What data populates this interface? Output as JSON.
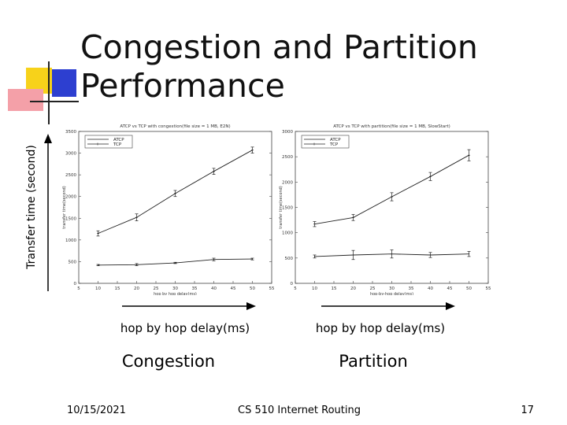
{
  "slide": {
    "title": "Congestion and Partition Performance",
    "y_axis_caption": "Transfer time (second)",
    "footer": {
      "date": "10/15/2021",
      "course": "CS 510 Internet Routing",
      "page": "17"
    }
  },
  "colors": {
    "deco_yellow": "#f7d21a",
    "deco_blue": "#2d3fd0",
    "deco_pink": "#f4a0a8"
  },
  "chart_data": [
    {
      "id": "congestion",
      "type": "line",
      "title": "ATCP vs TCP with congestion(file size = 1 MB, E2N)",
      "xlabel": "hop by hop delay(ms)",
      "ylabel": "transfer time(second)",
      "caption_x": "hop by hop delay(ms)",
      "caption_name": "Congestion",
      "xlim": [
        5,
        55
      ],
      "ylim": [
        0,
        3500
      ],
      "xticks": [
        5,
        10,
        15,
        20,
        25,
        30,
        35,
        40,
        45,
        50,
        55
      ],
      "yticks": [
        0,
        500,
        1000,
        1500,
        2000,
        2500,
        3000,
        3500
      ],
      "x": [
        10,
        20,
        30,
        40,
        50
      ],
      "series": [
        {
          "name": "ATCP",
          "values": [
            420,
            430,
            470,
            550,
            560
          ],
          "err": [
            15,
            25,
            15,
            30,
            20
          ]
        },
        {
          "name": "TCP",
          "values": [
            1150,
            1520,
            2070,
            2580,
            3070
          ],
          "err": [
            60,
            80,
            70,
            70,
            70
          ]
        }
      ],
      "legend": "top-left"
    },
    {
      "id": "partition",
      "type": "line",
      "title": "ATCP vs TCP with partition(file size = 1 MB, SlowStart)",
      "xlabel": "hop-by-hop delay(ms)",
      "ylabel": "transfer time(second)",
      "caption_x": "hop by hop delay(ms)",
      "caption_name": "Partition",
      "xlim": [
        5,
        55
      ],
      "ylim": [
        0,
        3000
      ],
      "xticks": [
        5,
        10,
        15,
        20,
        25,
        30,
        35,
        40,
        45,
        50,
        55
      ],
      "yticks": [
        0,
        500,
        1000,
        1500,
        2000,
        2500,
        3000
      ],
      "x": [
        10,
        20,
        30,
        40,
        50
      ],
      "series": [
        {
          "name": "ATCP",
          "values": [
            530,
            560,
            580,
            560,
            580
          ],
          "err": [
            30,
            90,
            80,
            50,
            50
          ]
        },
        {
          "name": "TCP",
          "values": [
            1170,
            1300,
            1710,
            2110,
            2530
          ],
          "err": [
            50,
            60,
            80,
            80,
            110
          ]
        }
      ],
      "legend": "top-left"
    }
  ]
}
